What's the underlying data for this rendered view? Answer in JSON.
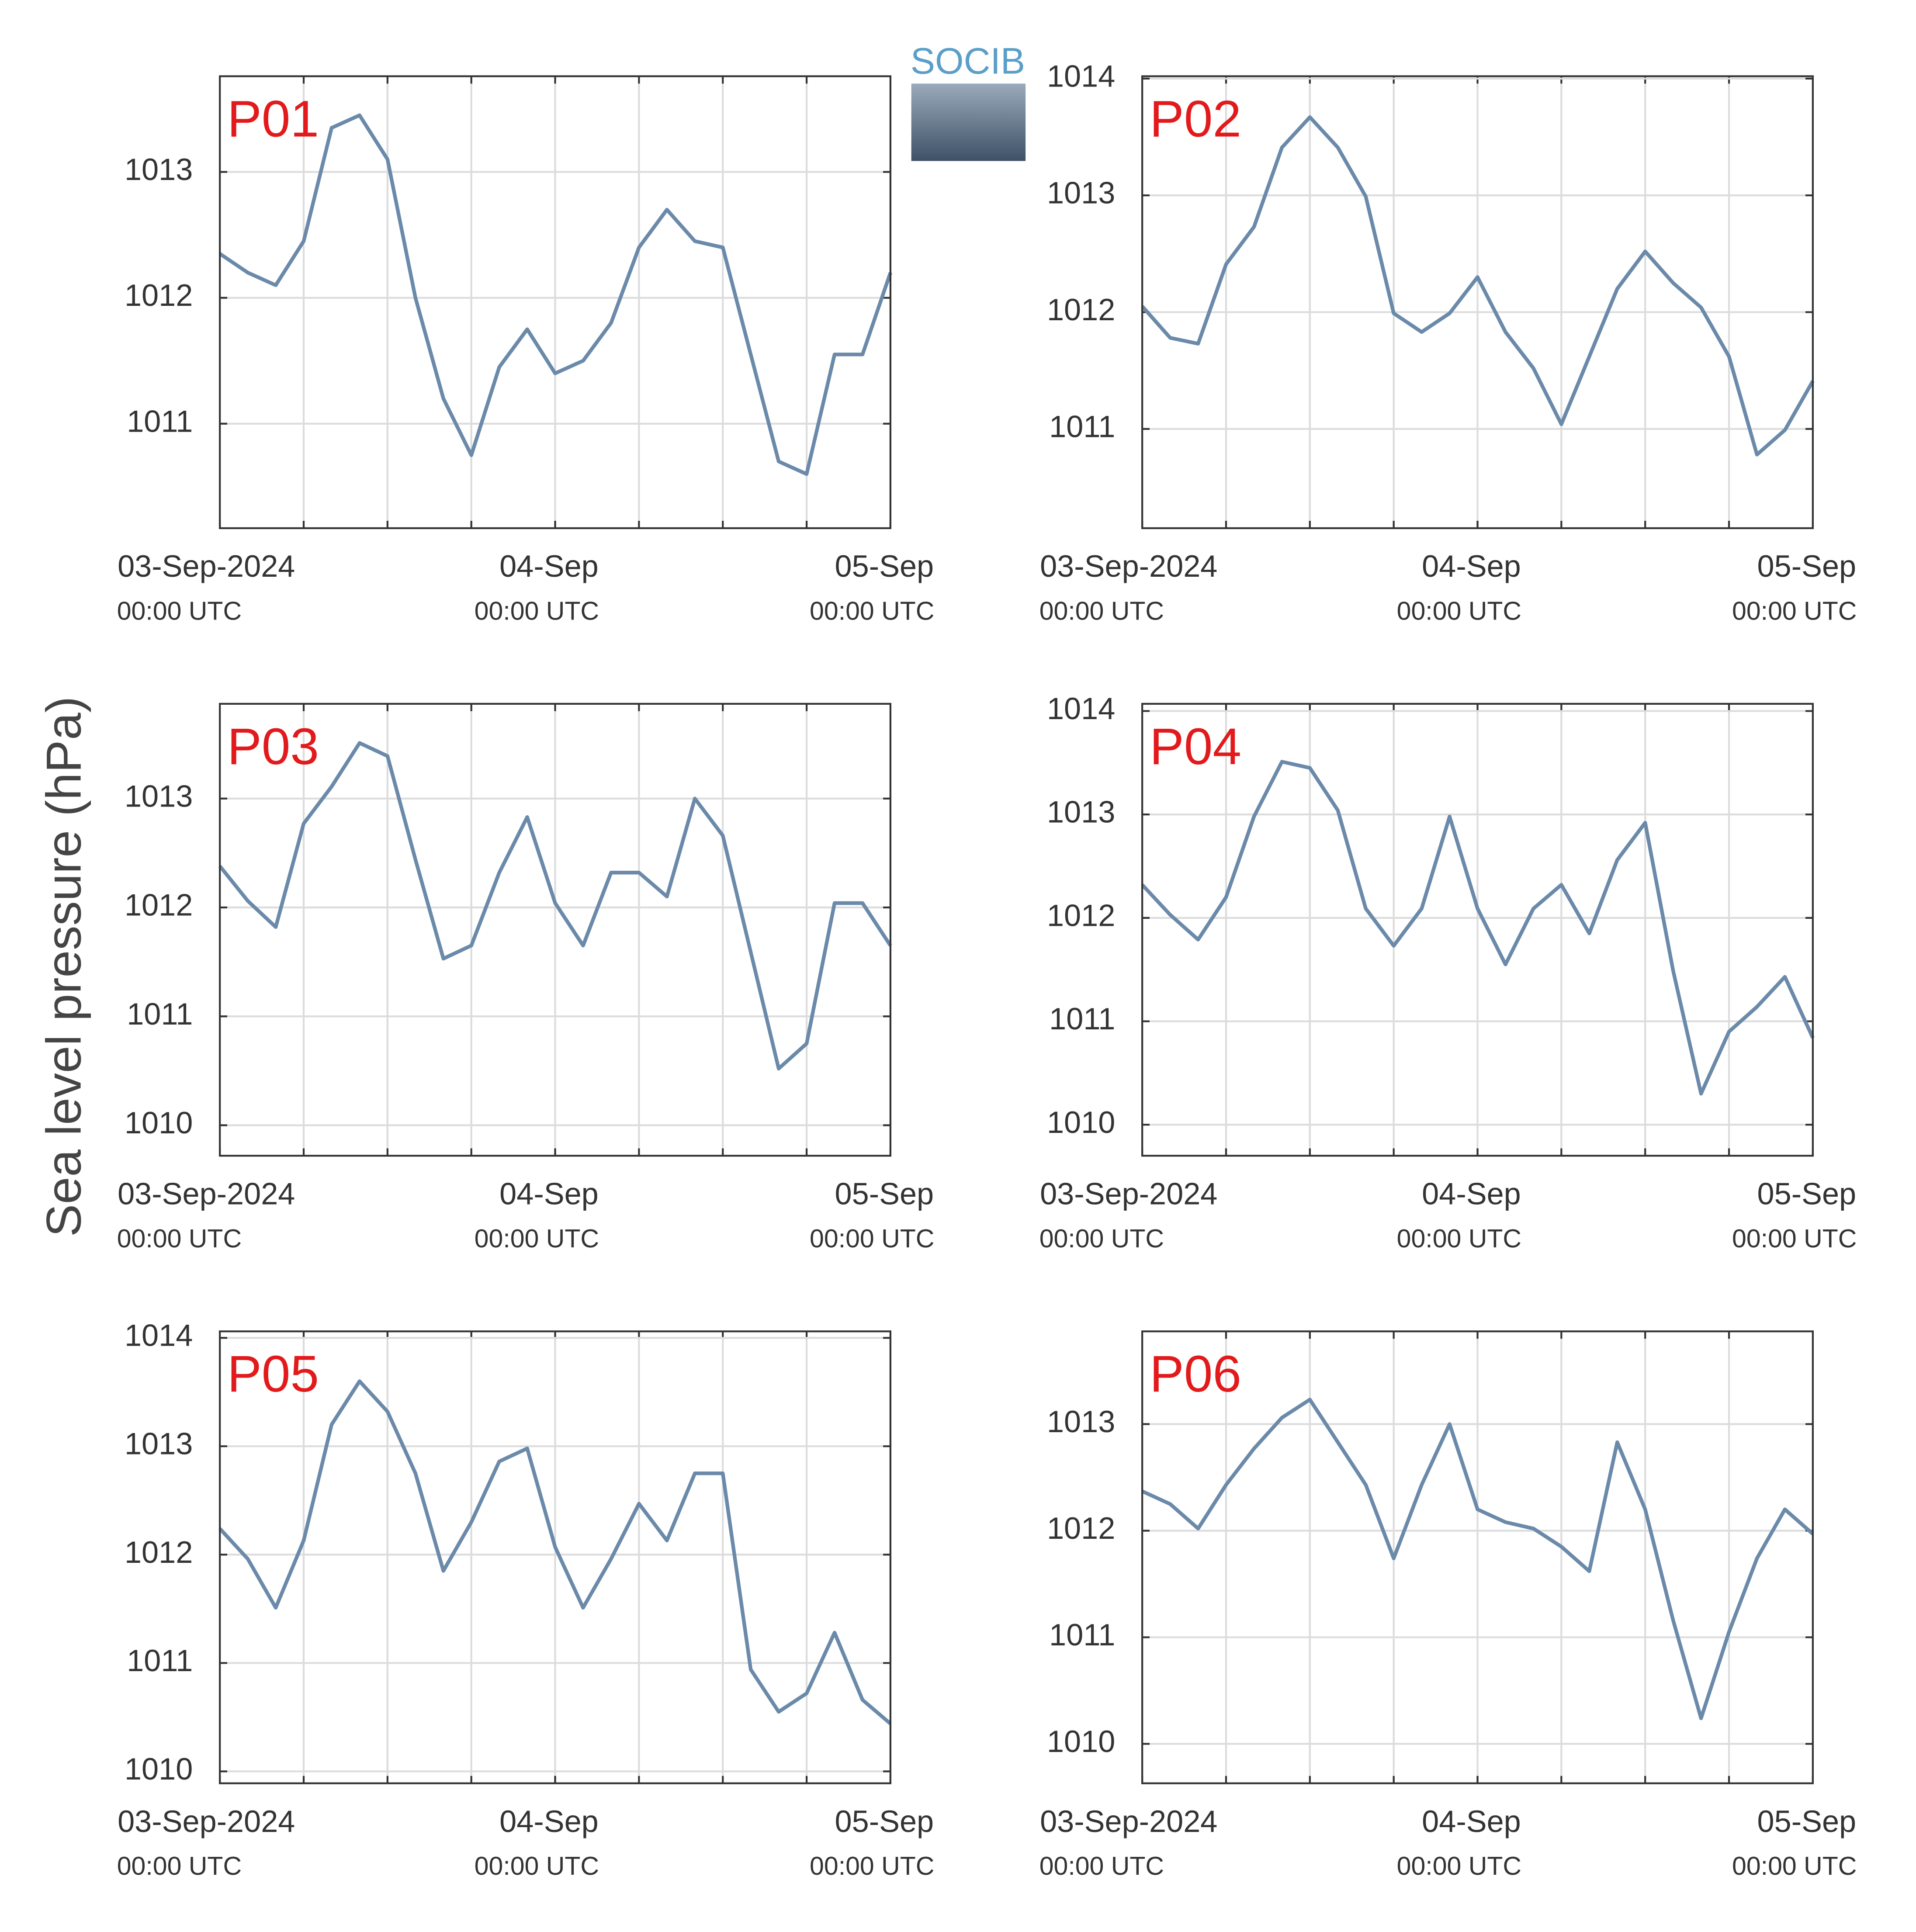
{
  "logo": "SOCIB",
  "ylabel": "Sea level pressure (hPa)",
  "chart_data": [
    {
      "type": "line",
      "title": "P01",
      "x": [
        "2024-09-03T00:00",
        "2024-09-03T02:00",
        "2024-09-03T04:00",
        "2024-09-03T06:00",
        "2024-09-03T08:00",
        "2024-09-03T10:00",
        "2024-09-03T12:00",
        "2024-09-03T14:00",
        "2024-09-03T16:00",
        "2024-09-03T18:00",
        "2024-09-03T20:00",
        "2024-09-03T22:00",
        "2024-09-04T00:00",
        "2024-09-04T02:00",
        "2024-09-04T04:00",
        "2024-09-04T06:00",
        "2024-09-04T08:00",
        "2024-09-04T10:00",
        "2024-09-04T12:00",
        "2024-09-04T14:00",
        "2024-09-04T16:00",
        "2024-09-04T18:00",
        "2024-09-04T20:00",
        "2024-09-04T22:00",
        "2024-09-05T00:00"
      ],
      "values": [
        1012.35,
        1012.2,
        1012.1,
        1012.45,
        1013.35,
        1013.45,
        1013.1,
        1012.0,
        1011.2,
        1010.75,
        1011.45,
        1011.75,
        1011.4,
        1011.5,
        1011.8,
        1012.4,
        1012.7,
        1012.45,
        1012.4,
        1011.55,
        1010.7,
        1010.6,
        1011.55,
        1011.55,
        1012.2
      ],
      "color": "#6b8aaa",
      "xlim": [
        "2024-09-03T00:00",
        "2024-09-05T00:00"
      ],
      "xticks": [
        {
          "value": "2024-09-03T00:00",
          "label": "03-Sep-2024",
          "sublabel": "00:00 UTC"
        },
        {
          "value": "2024-09-04T00:00",
          "label": "04-Sep",
          "sublabel": "00:00 UTC"
        },
        {
          "value": "2024-09-05T00:00",
          "label": "05-Sep",
          "sublabel": "00:00 UTC"
        }
      ],
      "xgrid": [
        "2024-09-03T06:00",
        "2024-09-03T12:00",
        "2024-09-03T18:00",
        "2024-09-04T00:00",
        "2024-09-04T06:00",
        "2024-09-04T12:00",
        "2024-09-04T18:00"
      ],
      "ylim": [
        1010.17,
        1013.76
      ],
      "yticks": [
        1011,
        1012,
        1013
      ],
      "grid": true
    },
    {
      "type": "line",
      "title": "P02",
      "x": [
        "2024-09-03T00:00",
        "2024-09-03T02:00",
        "2024-09-03T04:00",
        "2024-09-03T06:00",
        "2024-09-03T08:00",
        "2024-09-03T10:00",
        "2024-09-03T12:00",
        "2024-09-03T14:00",
        "2024-09-03T16:00",
        "2024-09-03T18:00",
        "2024-09-03T20:00",
        "2024-09-03T22:00",
        "2024-09-04T00:00",
        "2024-09-04T02:00",
        "2024-09-04T04:00",
        "2024-09-04T06:00",
        "2024-09-04T08:00",
        "2024-09-04T10:00",
        "2024-09-04T12:00",
        "2024-09-04T14:00",
        "2024-09-04T16:00",
        "2024-09-04T18:00",
        "2024-09-04T20:00",
        "2024-09-04T22:00",
        "2024-09-05T00:00"
      ],
      "values": [
        1012.05,
        1011.78,
        1011.73,
        1012.41,
        1012.73,
        1013.41,
        1013.67,
        1013.41,
        1012.99,
        1011.99,
        1011.83,
        1011.99,
        1012.3,
        1011.83,
        1011.52,
        1011.04,
        1011.62,
        1012.2,
        1012.52,
        1012.25,
        1012.04,
        1011.62,
        1010.78,
        1010.99,
        1011.41
      ],
      "color": "#6b8aaa",
      "xlim": [
        "2024-09-03T00:00",
        "2024-09-05T00:00"
      ],
      "xticks": [
        {
          "value": "2024-09-03T00:00",
          "label": "03-Sep-2024",
          "sublabel": "00:00 UTC"
        },
        {
          "value": "2024-09-04T00:00",
          "label": "04-Sep",
          "sublabel": "00:00 UTC"
        },
        {
          "value": "2024-09-05T00:00",
          "label": "05-Sep",
          "sublabel": "00:00 UTC"
        }
      ],
      "xgrid": [
        "2024-09-03T06:00",
        "2024-09-03T12:00",
        "2024-09-03T18:00",
        "2024-09-04T00:00",
        "2024-09-04T06:00",
        "2024-09-04T12:00",
        "2024-09-04T18:00"
      ],
      "ylim": [
        1010.15,
        1014.02
      ],
      "yticks": [
        1011,
        1012,
        1013,
        1014
      ],
      "grid": true
    },
    {
      "type": "line",
      "title": "P03",
      "x": [
        "2024-09-03T00:00",
        "2024-09-03T02:00",
        "2024-09-03T04:00",
        "2024-09-03T06:00",
        "2024-09-03T08:00",
        "2024-09-03T10:00",
        "2024-09-03T12:00",
        "2024-09-03T14:00",
        "2024-09-03T16:00",
        "2024-09-03T18:00",
        "2024-09-03T20:00",
        "2024-09-03T22:00",
        "2024-09-04T00:00",
        "2024-09-04T02:00",
        "2024-09-04T04:00",
        "2024-09-04T06:00",
        "2024-09-04T08:00",
        "2024-09-04T10:00",
        "2024-09-04T12:00",
        "2024-09-04T14:00",
        "2024-09-04T16:00",
        "2024-09-04T18:00",
        "2024-09-04T20:00",
        "2024-09-04T22:00",
        "2024-09-05T00:00"
      ],
      "values": [
        1012.38,
        1012.06,
        1011.82,
        1012.77,
        1013.11,
        1013.51,
        1013.39,
        1012.44,
        1011.53,
        1011.65,
        1012.32,
        1012.83,
        1012.04,
        1011.65,
        1012.32,
        1012.32,
        1012.1,
        1013.0,
        1012.66,
        1011.59,
        1010.52,
        1010.75,
        1012.04,
        1012.04,
        1011.65
      ],
      "color": "#6b8aaa",
      "xlim": [
        "2024-09-03T00:00",
        "2024-09-05T00:00"
      ],
      "xticks": [
        {
          "value": "2024-09-03T00:00",
          "label": "03-Sep-2024",
          "sublabel": "00:00 UTC"
        },
        {
          "value": "2024-09-04T00:00",
          "label": "04-Sep",
          "sublabel": "00:00 UTC"
        },
        {
          "value": "2024-09-05T00:00",
          "label": "05-Sep",
          "sublabel": "00:00 UTC"
        }
      ],
      "xgrid": [
        "2024-09-03T06:00",
        "2024-09-03T12:00",
        "2024-09-03T18:00",
        "2024-09-04T00:00",
        "2024-09-04T06:00",
        "2024-09-04T12:00",
        "2024-09-04T18:00"
      ],
      "ylim": [
        1009.72,
        1013.87
      ],
      "yticks": [
        1010,
        1011,
        1012,
        1013
      ],
      "grid": true
    },
    {
      "type": "line",
      "title": "P04",
      "x": [
        "2024-09-03T00:00",
        "2024-09-03T02:00",
        "2024-09-03T04:00",
        "2024-09-03T06:00",
        "2024-09-03T08:00",
        "2024-09-03T10:00",
        "2024-09-03T12:00",
        "2024-09-03T14:00",
        "2024-09-03T16:00",
        "2024-09-03T18:00",
        "2024-09-03T20:00",
        "2024-09-03T22:00",
        "2024-09-04T00:00",
        "2024-09-04T02:00",
        "2024-09-04T04:00",
        "2024-09-04T06:00",
        "2024-09-04T08:00",
        "2024-09-04T10:00",
        "2024-09-04T12:00",
        "2024-09-04T14:00",
        "2024-09-04T16:00",
        "2024-09-04T18:00",
        "2024-09-04T20:00",
        "2024-09-04T22:00",
        "2024-09-05T00:00"
      ],
      "values": [
        1012.32,
        1012.03,
        1011.79,
        1012.2,
        1012.98,
        1013.51,
        1013.45,
        1013.04,
        1012.09,
        1011.73,
        1012.09,
        1012.98,
        1012.09,
        1011.55,
        1012.09,
        1012.32,
        1011.85,
        1012.56,
        1012.92,
        1011.49,
        1010.3,
        1010.9,
        1011.14,
        1011.43,
        1010.84
      ],
      "color": "#6b8aaa",
      "xlim": [
        "2024-09-03T00:00",
        "2024-09-05T00:00"
      ],
      "xticks": [
        {
          "value": "2024-09-03T00:00",
          "label": "03-Sep-2024",
          "sublabel": "00:00 UTC"
        },
        {
          "value": "2024-09-04T00:00",
          "label": "04-Sep",
          "sublabel": "00:00 UTC"
        },
        {
          "value": "2024-09-05T00:00",
          "label": "05-Sep",
          "sublabel": "00:00 UTC"
        }
      ],
      "xgrid": [
        "2024-09-03T06:00",
        "2024-09-03T12:00",
        "2024-09-03T18:00",
        "2024-09-04T00:00",
        "2024-09-04T06:00",
        "2024-09-04T12:00",
        "2024-09-04T18:00"
      ],
      "ylim": [
        1009.7,
        1014.07
      ],
      "yticks": [
        1010,
        1011,
        1012,
        1013,
        1014
      ],
      "grid": true
    },
    {
      "type": "line",
      "title": "P05",
      "x": [
        "2024-09-03T00:00",
        "2024-09-03T02:00",
        "2024-09-03T04:00",
        "2024-09-03T06:00",
        "2024-09-03T08:00",
        "2024-09-03T10:00",
        "2024-09-03T12:00",
        "2024-09-03T14:00",
        "2024-09-03T16:00",
        "2024-09-03T18:00",
        "2024-09-03T20:00",
        "2024-09-03T22:00",
        "2024-09-04T00:00",
        "2024-09-04T02:00",
        "2024-09-04T04:00",
        "2024-09-04T06:00",
        "2024-09-04T08:00",
        "2024-09-04T10:00",
        "2024-09-04T12:00",
        "2024-09-04T14:00",
        "2024-09-04T16:00",
        "2024-09-04T18:00",
        "2024-09-04T20:00",
        "2024-09-04T22:00",
        "2024-09-05T00:00"
      ],
      "values": [
        1012.24,
        1011.96,
        1011.51,
        1012.13,
        1013.2,
        1013.6,
        1013.32,
        1012.75,
        1011.85,
        1012.3,
        1012.86,
        1012.98,
        1012.07,
        1011.51,
        1011.96,
        1012.47,
        1012.13,
        1012.75,
        1012.75,
        1010.94,
        1010.55,
        1010.72,
        1011.28,
        1010.66,
        1010.44
      ],
      "color": "#6b8aaa",
      "xlim": [
        "2024-09-03T00:00",
        "2024-09-05T00:00"
      ],
      "xticks": [
        {
          "value": "2024-09-03T00:00",
          "label": "03-Sep-2024",
          "sublabel": "00:00 UTC"
        },
        {
          "value": "2024-09-04T00:00",
          "label": "04-Sep",
          "sublabel": "00:00 UTC"
        },
        {
          "value": "2024-09-05T00:00",
          "label": "05-Sep",
          "sublabel": "00:00 UTC"
        }
      ],
      "xgrid": [
        "2024-09-03T06:00",
        "2024-09-03T12:00",
        "2024-09-03T18:00",
        "2024-09-04T00:00",
        "2024-09-04T06:00",
        "2024-09-04T12:00",
        "2024-09-04T18:00"
      ],
      "ylim": [
        1009.89,
        1014.06
      ],
      "yticks": [
        1010,
        1011,
        1012,
        1013,
        1014
      ],
      "grid": true
    },
    {
      "type": "line",
      "title": "P06",
      "x": [
        "2024-09-03T00:00",
        "2024-09-03T02:00",
        "2024-09-03T04:00",
        "2024-09-03T06:00",
        "2024-09-03T08:00",
        "2024-09-03T10:00",
        "2024-09-03T12:00",
        "2024-09-03T14:00",
        "2024-09-03T16:00",
        "2024-09-03T18:00",
        "2024-09-03T20:00",
        "2024-09-03T22:00",
        "2024-09-04T00:00",
        "2024-09-04T02:00",
        "2024-09-04T04:00",
        "2024-09-04T06:00",
        "2024-09-04T08:00",
        "2024-09-04T10:00",
        "2024-09-04T12:00",
        "2024-09-04T14:00",
        "2024-09-04T16:00",
        "2024-09-04T18:00",
        "2024-09-04T20:00",
        "2024-09-04T22:00",
        "2024-09-05T00:00"
      ],
      "values": [
        1012.37,
        1012.25,
        1012.02,
        1012.43,
        1012.77,
        1013.06,
        1013.23,
        1012.83,
        1012.43,
        1011.74,
        1012.43,
        1013.0,
        1012.2,
        1012.08,
        1012.02,
        1011.85,
        1011.62,
        1012.83,
        1012.2,
        1011.16,
        1010.24,
        1011.05,
        1011.74,
        1012.2,
        1011.97
      ],
      "color": "#6b8aaa",
      "xlim": [
        "2024-09-03T00:00",
        "2024-09-05T00:00"
      ],
      "xticks": [
        {
          "value": "2024-09-03T00:00",
          "label": "03-Sep-2024",
          "sublabel": "00:00 UTC"
        },
        {
          "value": "2024-09-04T00:00",
          "label": "04-Sep",
          "sublabel": "00:00 UTC"
        },
        {
          "value": "2024-09-05T00:00",
          "label": "05-Sep",
          "sublabel": "00:00 UTC"
        }
      ],
      "xgrid": [
        "2024-09-03T06:00",
        "2024-09-03T12:00",
        "2024-09-03T18:00",
        "2024-09-04T00:00",
        "2024-09-04T06:00",
        "2024-09-04T12:00",
        "2024-09-04T18:00"
      ],
      "ylim": [
        1009.63,
        1013.87
      ],
      "yticks": [
        1010,
        1011,
        1012,
        1013
      ],
      "grid": true
    }
  ]
}
